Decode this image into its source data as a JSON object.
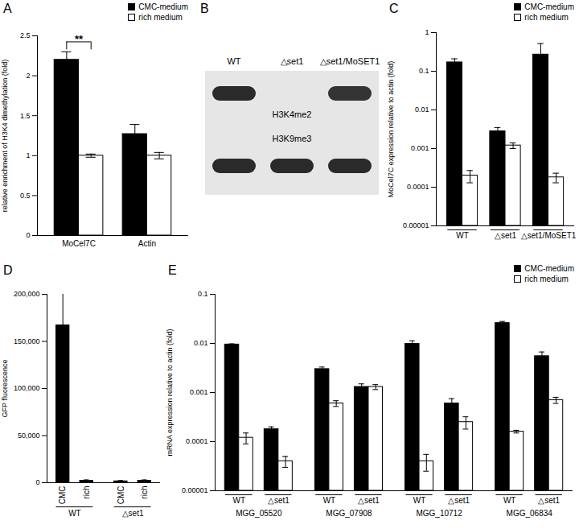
{
  "chart_data": [
    {
      "type": "bar",
      "title": "A",
      "ylabel": "relative enrichment of H3K4 dimethylation (fold)",
      "categories": [
        "MoCel7C",
        "Actin"
      ],
      "series": [
        {
          "name": "CMC-medium",
          "color": "#000000",
          "values": [
            2.2,
            1.27
          ],
          "errors": [
            0.1,
            0.12
          ]
        },
        {
          "name": "rich medium",
          "color": "#ffffff",
          "values": [
            1.0,
            1.0
          ],
          "errors": [
            0.02,
            0.04
          ]
        }
      ],
      "ylim": [
        0,
        2.5
      ],
      "yticks": [
        0,
        0.5,
        1,
        1.5,
        2,
        2.5
      ],
      "legend": "top right",
      "annotations": [
        {
          "text": "**",
          "category": "MoCel7C"
        }
      ]
    },
    {
      "type": "bar",
      "title": "C",
      "ylabel": "MoCel7C expression relative to actin (fold)",
      "categories": [
        "WT",
        "△set1",
        "△set1/MoSET1"
      ],
      "series": [
        {
          "name": "CMC-medium",
          "color": "#000000",
          "values": [
            0.17,
            0.0028,
            0.27
          ],
          "errors": [
            0.04,
            0.0007,
            0.25
          ]
        },
        {
          "name": "rich medium",
          "color": "#ffffff",
          "values": [
            0.0002,
            0.0012,
            0.00018
          ],
          "errors": [
            7e-05,
            0.0002,
            5e-05
          ]
        }
      ],
      "log": "y",
      "ylim": [
        1e-05,
        1
      ],
      "yticks": [
        {
          "value": 1e-05,
          "label": "0.00001"
        },
        {
          "value": 0.0001,
          "label": "0.0001"
        },
        {
          "value": 0.001,
          "label": "0.001"
        },
        {
          "value": 0.01,
          "label": "0.01"
        },
        {
          "value": 0.1,
          "label": "0.1"
        },
        1
      ],
      "legend": "top right"
    },
    {
      "type": "bar",
      "title": "D",
      "ylabel": "GFP fluorescence",
      "groups": [
        "WT",
        "△set1"
      ],
      "categories": [
        "CMC",
        "rich",
        "CMC",
        "rich"
      ],
      "values": [
        167000,
        2000,
        1500,
        2000
      ],
      "errors": [
        35000,
        1000,
        800,
        1000
      ],
      "color": "#000000",
      "ylim": [
        0,
        200000
      ],
      "yticks": [
        0,
        {
          "value": 50000,
          "label": "50,000"
        },
        {
          "value": 100000,
          "label": "100,000"
        },
        {
          "value": 150000,
          "label": "150,000"
        },
        {
          "value": 200000,
          "label": "200,000"
        }
      ]
    },
    {
      "type": "bar",
      "title": "E",
      "ylabel": "mRNA expression relative to actin (fold)",
      "groups": [
        "MGG_05520",
        "MGG_07908",
        "MGG_10712",
        "MGG_06834"
      ],
      "categories": [
        "WT",
        "△set1",
        "WT",
        "△set1",
        "WT",
        "△set1",
        "WT",
        "△set1"
      ],
      "series": [
        {
          "name": "CMC-medium",
          "color": "#000000",
          "values": [
            0.0095,
            0.00018,
            0.003,
            0.0013,
            0.0098,
            0.0006,
            0.026,
            0.0055
          ],
          "errors": [
            0.0003,
            2e-05,
            0.0003,
            0.0002,
            0.0015,
            0.00015,
            0.002,
            0.0012
          ]
        },
        {
          "name": "rich medium",
          "color": "#ffffff",
          "values": [
            0.00012,
            4e-05,
            0.0006,
            0.0013,
            4e-05,
            0.00025,
            0.00016,
            0.0007
          ],
          "errors": [
            3e-05,
            1e-05,
            8e-05,
            0.00015,
            1.5e-05,
            7e-05,
            1e-05,
            0.0001
          ]
        }
      ],
      "log": "y",
      "ylim": [
        1e-05,
        0.1
      ],
      "yticks": [
        {
          "value": 1e-05,
          "label": "0.00001"
        },
        {
          "value": 0.0001,
          "label": "0.0001"
        },
        {
          "value": 0.001,
          "label": "0.001"
        },
        {
          "value": 0.01,
          "label": "0.01"
        },
        {
          "value": 0.1,
          "label": "0.1"
        }
      ],
      "legend": "top right"
    }
  ],
  "blot": {
    "title": "B",
    "lanes": [
      "WT",
      "△set1",
      "△set1/MoSET1"
    ],
    "rows": [
      {
        "label": "H3K4me2",
        "intensity": [
          1,
          0,
          0.95
        ]
      },
      {
        "label": "H3K9me3",
        "intensity": [
          1,
          1,
          1
        ]
      }
    ]
  }
}
